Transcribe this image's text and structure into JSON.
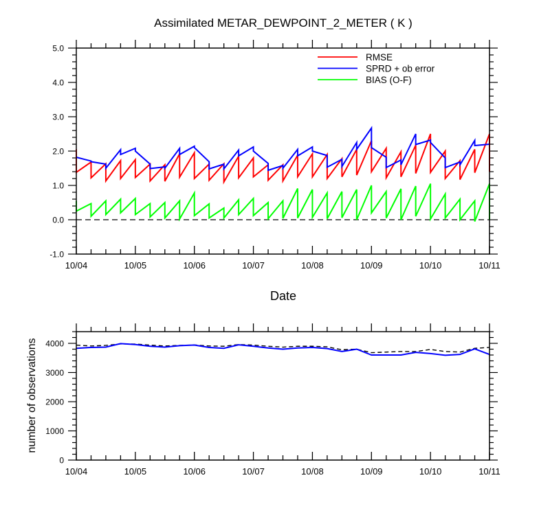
{
  "chart_data": [
    {
      "type": "line",
      "title": "Assimilated METAR_DEWPOINT_2_METER ( K )",
      "xlabel": "Date",
      "ylabel": "",
      "ylim": [
        -1.0,
        5.0
      ],
      "yticks": [
        "-1.0",
        "0.0",
        "1.0",
        "2.0",
        "3.0",
        "4.0",
        "5.0"
      ],
      "x_tick_labels": [
        "10/04",
        "10/05",
        "10/06",
        "10/07",
        "10/08",
        "10/09",
        "10/10",
        "10/11"
      ],
      "legend_position": "top-right",
      "reference_line": 0.0,
      "x": [
        4.0,
        4.25,
        4.5,
        4.75,
        5.0,
        5.25,
        5.5,
        5.75,
        6.0,
        6.25,
        6.5,
        6.75,
        7.0,
        7.25,
        7.5,
        7.75,
        8.0,
        8.25,
        8.5,
        8.75,
        9.0,
        9.25,
        9.5,
        9.75,
        10.0,
        10.25,
        10.5,
        10.75,
        11.0
      ],
      "series": [
        {
          "name": "RMSE",
          "color": "#ff0000",
          "sawtooth": true,
          "prior": [
            2.05,
            1.68,
            1.63,
            1.72,
            1.75,
            1.62,
            1.6,
            1.92,
            1.95,
            1.62,
            1.63,
            1.85,
            1.8,
            1.6,
            1.6,
            1.88,
            1.92,
            1.9,
            1.78,
            2.05,
            2.3,
            2.08,
            1.98,
            2.17,
            2.5,
            2.0,
            1.72,
            2.05,
            2.5
          ],
          "posterior": [
            1.38,
            1.22,
            1.13,
            1.2,
            1.23,
            1.13,
            1.12,
            1.24,
            1.2,
            1.15,
            1.1,
            1.22,
            1.25,
            1.15,
            1.13,
            1.25,
            1.25,
            1.2,
            1.25,
            1.3,
            1.4,
            1.22,
            1.25,
            1.35,
            1.38,
            1.2,
            1.17,
            1.37,
            1.4
          ]
        },
        {
          "name": "SPRD + ob error",
          "color": "#0000ff",
          "sawtooth": true,
          "prior": [
            1.82,
            1.71,
            1.62,
            2.04,
            2.08,
            1.62,
            1.54,
            2.08,
            2.14,
            1.69,
            1.62,
            2.03,
            2.12,
            1.64,
            1.58,
            2.05,
            2.12,
            1.87,
            1.76,
            2.25,
            2.67,
            1.82,
            1.74,
            2.5,
            2.32,
            1.8,
            1.68,
            2.31,
            2.2
          ],
          "posterior": [
            1.82,
            1.69,
            1.5,
            1.9,
            2.0,
            1.49,
            1.5,
            1.9,
            2.1,
            1.48,
            1.48,
            1.86,
            2.0,
            1.44,
            1.5,
            1.86,
            2.0,
            1.53,
            1.55,
            2.05,
            2.1,
            1.52,
            1.6,
            2.19,
            2.25,
            1.52,
            1.6,
            2.16,
            2.2
          ]
        },
        {
          "name": "BIAS (O-F)",
          "color": "#00ff00",
          "sawtooth": true,
          "prior": [
            0.55,
            0.47,
            0.55,
            0.6,
            0.62,
            0.47,
            0.5,
            0.55,
            0.78,
            0.46,
            0.34,
            0.58,
            0.62,
            0.5,
            0.55,
            0.91,
            0.88,
            0.78,
            0.82,
            0.88,
            1.0,
            0.82,
            0.9,
            0.98,
            1.05,
            0.75,
            0.6,
            0.55,
            1.05
          ],
          "posterior": [
            0.25,
            0.1,
            0.15,
            0.2,
            0.15,
            0.08,
            0.05,
            0.02,
            0.12,
            0.05,
            0.05,
            0.15,
            0.12,
            0.03,
            0.04,
            0.05,
            0.07,
            0.03,
            0.06,
            0.0,
            0.2,
            0.05,
            0.0,
            0.1,
            0.02,
            0.05,
            0.0,
            -0.05,
            0.0
          ]
        }
      ]
    },
    {
      "type": "line",
      "title": "",
      "xlabel": "",
      "ylabel": "number of observations",
      "ylim": [
        0,
        4400
      ],
      "yticks": [
        "0",
        "1000",
        "2000",
        "3000",
        "4000"
      ],
      "x_tick_labels": [
        "10/04",
        "10/05",
        "10/06",
        "10/07",
        "10/08",
        "10/09",
        "10/10",
        "10/11"
      ],
      "x": [
        4.0,
        4.25,
        4.5,
        4.75,
        5.0,
        5.25,
        5.5,
        5.75,
        6.0,
        6.25,
        6.5,
        6.75,
        7.0,
        7.25,
        7.5,
        7.75,
        8.0,
        8.25,
        8.5,
        8.75,
        9.0,
        9.25,
        9.5,
        9.75,
        10.0,
        10.25,
        10.5,
        10.75,
        11.0
      ],
      "series": [
        {
          "color": "#000000",
          "dash": true,
          "values": [
            3940,
            3910,
            3930,
            3980,
            3975,
            3940,
            3910,
            3930,
            3945,
            3910,
            3900,
            3960,
            3940,
            3900,
            3870,
            3900,
            3900,
            3880,
            3780,
            3800,
            3680,
            3700,
            3720,
            3720,
            3790,
            3720,
            3700,
            3830,
            3860
          ]
        },
        {
          "color": "#0000ff",
          "dash": false,
          "values": [
            3830,
            3860,
            3870,
            3990,
            3960,
            3900,
            3870,
            3920,
            3940,
            3860,
            3830,
            3950,
            3900,
            3840,
            3800,
            3840,
            3860,
            3820,
            3720,
            3800,
            3600,
            3600,
            3600,
            3690,
            3650,
            3590,
            3620,
            3810,
            3620
          ]
        }
      ]
    }
  ]
}
